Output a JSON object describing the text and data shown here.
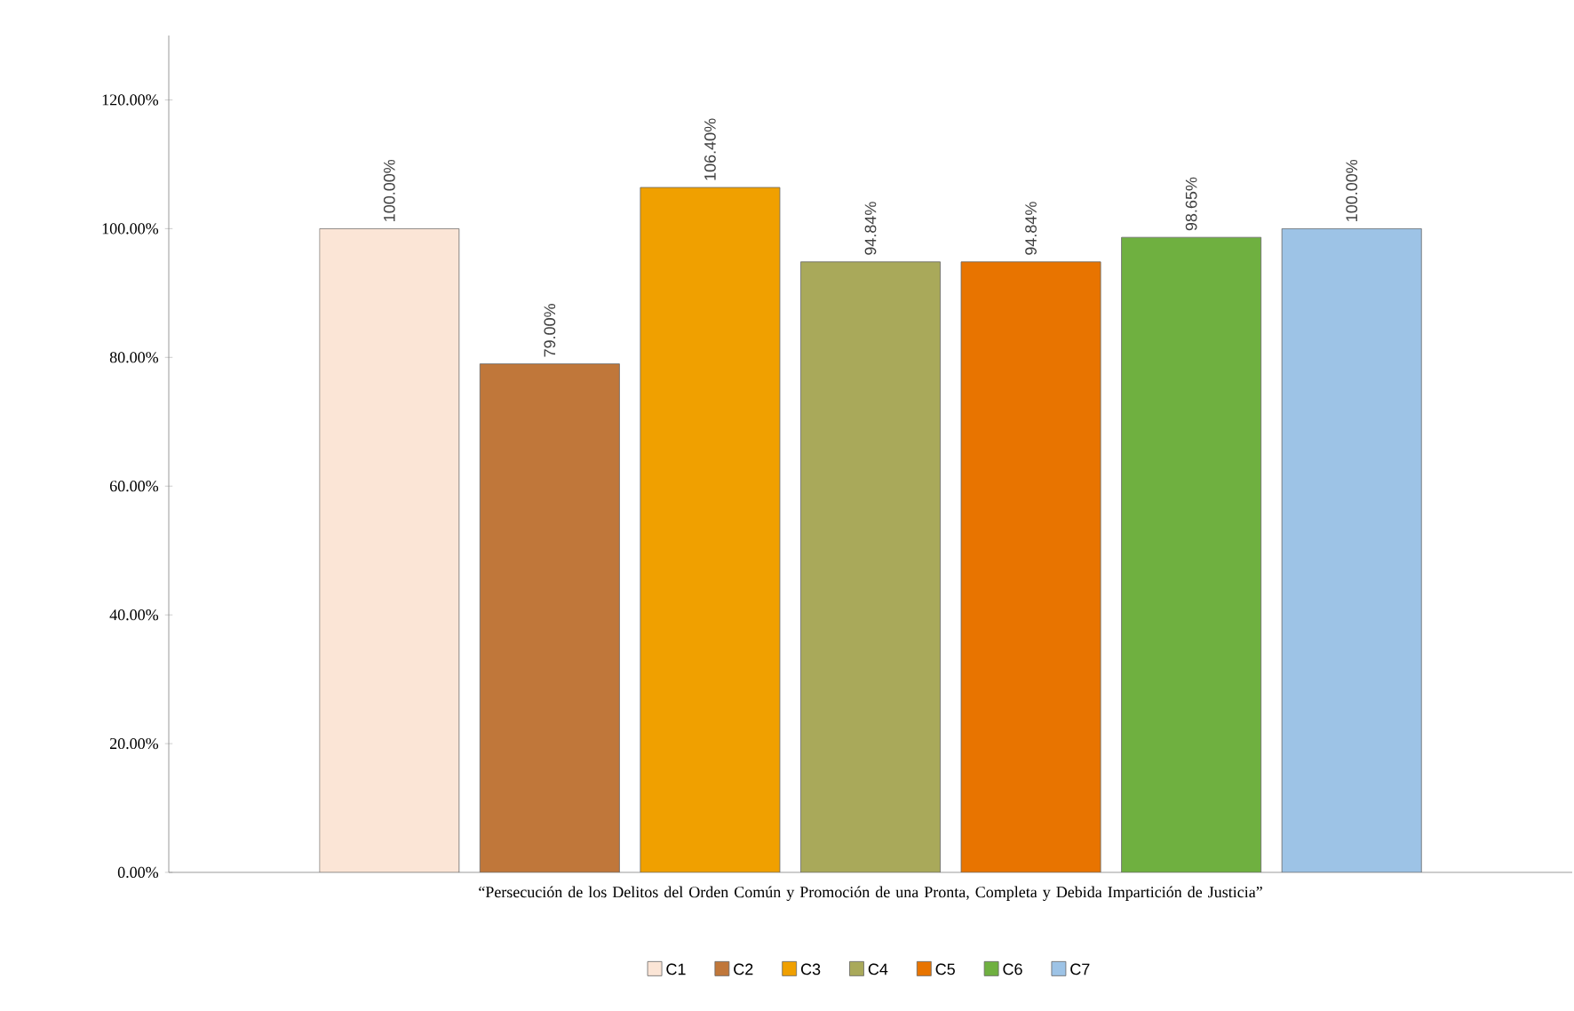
{
  "chart_data": {
    "type": "bar",
    "categories": [
      "“Persecución de los Delitos del Orden Común y Promoción de una Pronta, Completa y Debida Impartición de Justicia”"
    ],
    "series": [
      {
        "name": "C1",
        "color": "#fbe5d6",
        "values": [
          100
        ],
        "value_labels": [
          "100.00%"
        ]
      },
      {
        "name": "C2",
        "color": "#c0773a",
        "values": [
          79
        ],
        "value_labels": [
          "79.00%"
        ]
      },
      {
        "name": "C3",
        "color": "#f0a000",
        "values": [
          106.4
        ],
        "value_labels": [
          "106.40%"
        ]
      },
      {
        "name": "C4",
        "color": "#a9a95a",
        "values": [
          94.84
        ],
        "value_labels": [
          "94.84%"
        ]
      },
      {
        "name": "C5",
        "color": "#e87400",
        "values": [
          94.84
        ],
        "value_labels": [
          "94.84%"
        ]
      },
      {
        "name": "C6",
        "color": "#6fb040",
        "values": [
          98.65
        ],
        "value_labels": [
          "98.65%"
        ]
      },
      {
        "name": "C7",
        "color": "#9dc3e6",
        "values": [
          100
        ],
        "value_labels": [
          "100.00%"
        ]
      }
    ],
    "ylim": [
      0,
      130
    ],
    "yticks": [
      {
        "value": 0,
        "label": "0.00%"
      },
      {
        "value": 20,
        "label": "20.00%"
      },
      {
        "value": 40,
        "label": "40.00%"
      },
      {
        "value": 60,
        "label": "60.00%"
      },
      {
        "value": 80,
        "label": "80.00%"
      },
      {
        "value": 100,
        "label": "100.00%"
      },
      {
        "value": 120,
        "label": "120.00%"
      }
    ],
    "legend": "bottom",
    "grid": false
  }
}
